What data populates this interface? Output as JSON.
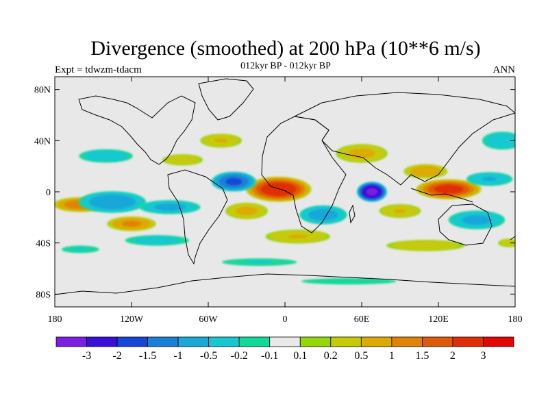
{
  "chart_data": {
    "type": "heatmap",
    "title": "Divergence (smoothed) at 200 hPa (10**6 m/s)",
    "subtitle": "012kyr BP - 012kyr BP",
    "left_label": "Expt = tdwzm-tdacm",
    "right_label": "ANN",
    "x_ticks": [
      {
        "value": -180,
        "label": "180"
      },
      {
        "value": -120,
        "label": "120W"
      },
      {
        "value": -60,
        "label": "60W"
      },
      {
        "value": 0,
        "label": "0"
      },
      {
        "value": 60,
        "label": "60E"
      },
      {
        "value": 120,
        "label": "120E"
      },
      {
        "value": 180,
        "label": "180"
      }
    ],
    "y_ticks": [
      {
        "value": 80,
        "label": "80N"
      },
      {
        "value": 40,
        "label": "40N"
      },
      {
        "value": 0,
        "label": "0"
      },
      {
        "value": -40,
        "label": "40S"
      },
      {
        "value": -80,
        "label": "80S"
      }
    ],
    "xlim": [
      -180,
      180
    ],
    "ylim": [
      -90,
      90
    ],
    "colorbar": {
      "colors": [
        "#7b1fe0",
        "#3a10d8",
        "#1646d6",
        "#1a7fd6",
        "#19a8d8",
        "#17c8d0",
        "#13d89a",
        "#e8e8e8",
        "#96d60c",
        "#c6ca08",
        "#dcaa06",
        "#df8406",
        "#df5a06",
        "#df2e06",
        "#e20606"
      ],
      "labels": [
        "-3",
        "-2",
        "-1.5",
        "-1",
        "-0.5",
        "-0.2",
        "-0.1",
        "0.1",
        "0.2",
        "0.5",
        "1",
        "1.5",
        "2",
        "3"
      ]
    },
    "anomalies": [
      {
        "lon": -5,
        "lat": 2,
        "rx": 26,
        "ry": 10,
        "value": 2.6
      },
      {
        "lon": 128,
        "lat": 2,
        "rx": 26,
        "ry": 8,
        "value": 2.3
      },
      {
        "lon": -160,
        "lat": -10,
        "rx": 22,
        "ry": 6,
        "value": 1.4
      },
      {
        "lon": -120,
        "lat": -25,
        "rx": 20,
        "ry": 6,
        "value": 1.1
      },
      {
        "lon": 68,
        "lat": 0,
        "rx": 12,
        "ry": 8,
        "value": -3.2
      },
      {
        "lon": -40,
        "lat": 8,
        "rx": 18,
        "ry": 8,
        "value": -1.6
      },
      {
        "lon": -135,
        "lat": -8,
        "rx": 28,
        "ry": 9,
        "value": -0.8
      },
      {
        "lon": 150,
        "lat": -22,
        "rx": 24,
        "ry": 8,
        "value": -0.6
      },
      {
        "lon": 30,
        "lat": -18,
        "rx": 20,
        "ry": 8,
        "value": -0.7
      },
      {
        "lon": -90,
        "lat": -12,
        "rx": 26,
        "ry": 6,
        "value": -0.6
      },
      {
        "lon": 110,
        "lat": 16,
        "rx": 18,
        "ry": 6,
        "value": 0.9
      },
      {
        "lon": 60,
        "lat": 30,
        "rx": 22,
        "ry": 8,
        "value": 0.6
      },
      {
        "lon": -50,
        "lat": 40,
        "rx": 18,
        "ry": 6,
        "value": 0.5
      },
      {
        "lon": -140,
        "lat": 28,
        "rx": 24,
        "ry": 6,
        "value": -0.4
      },
      {
        "lon": -80,
        "lat": 25,
        "rx": 18,
        "ry": 5,
        "value": 0.4
      },
      {
        "lon": 10,
        "lat": -35,
        "rx": 28,
        "ry": 6,
        "value": 0.5
      },
      {
        "lon": -100,
        "lat": -38,
        "rx": 30,
        "ry": 5,
        "value": -0.3
      },
      {
        "lon": 110,
        "lat": -42,
        "rx": 35,
        "ry": 5,
        "value": 0.4
      },
      {
        "lon": -20,
        "lat": -55,
        "rx": 40,
        "ry": 4,
        "value": -0.2
      },
      {
        "lon": 50,
        "lat": -70,
        "rx": 60,
        "ry": 4,
        "value": -0.15
      },
      {
        "lon": 170,
        "lat": 40,
        "rx": 18,
        "ry": 8,
        "value": -0.4
      },
      {
        "lon": 160,
        "lat": 10,
        "rx": 20,
        "ry": 6,
        "value": -0.5
      },
      {
        "lon": -30,
        "lat": -15,
        "rx": 18,
        "ry": 7,
        "value": 0.6
      },
      {
        "lon": 90,
        "lat": -15,
        "rx": 18,
        "ry": 6,
        "value": 0.5
      },
      {
        "lon": -160,
        "lat": -45,
        "rx": 20,
        "ry": 4,
        "value": -0.2
      },
      {
        "lon": 175,
        "lat": -40,
        "rx": 10,
        "ry": 4,
        "value": 0.3
      }
    ]
  }
}
